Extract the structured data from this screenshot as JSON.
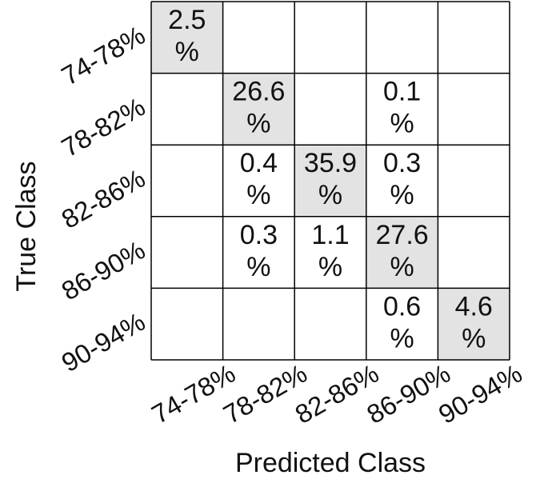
{
  "chart_data": {
    "type": "heatmap",
    "title": "",
    "xlabel": "Predicted Class",
    "ylabel": "True Class",
    "x_categories": [
      "74-78%",
      "78-82%",
      "82-86%",
      "86-90%",
      "90-94%"
    ],
    "y_categories": [
      "74-78%",
      "78-82%",
      "82-86%",
      "86-90%",
      "90-94%"
    ],
    "values": [
      [
        2.5,
        null,
        null,
        null,
        null
      ],
      [
        null,
        26.6,
        null,
        0.1,
        null
      ],
      [
        null,
        0.4,
        35.9,
        0.3,
        null
      ],
      [
        null,
        0.3,
        1.1,
        27.6,
        null
      ],
      [
        null,
        null,
        null,
        0.6,
        4.6
      ]
    ],
    "value_unit": "%",
    "diagonal_color": "#e3e3e3",
    "off_diagonal_color": "#ffffff",
    "grid_color": "#000000"
  }
}
